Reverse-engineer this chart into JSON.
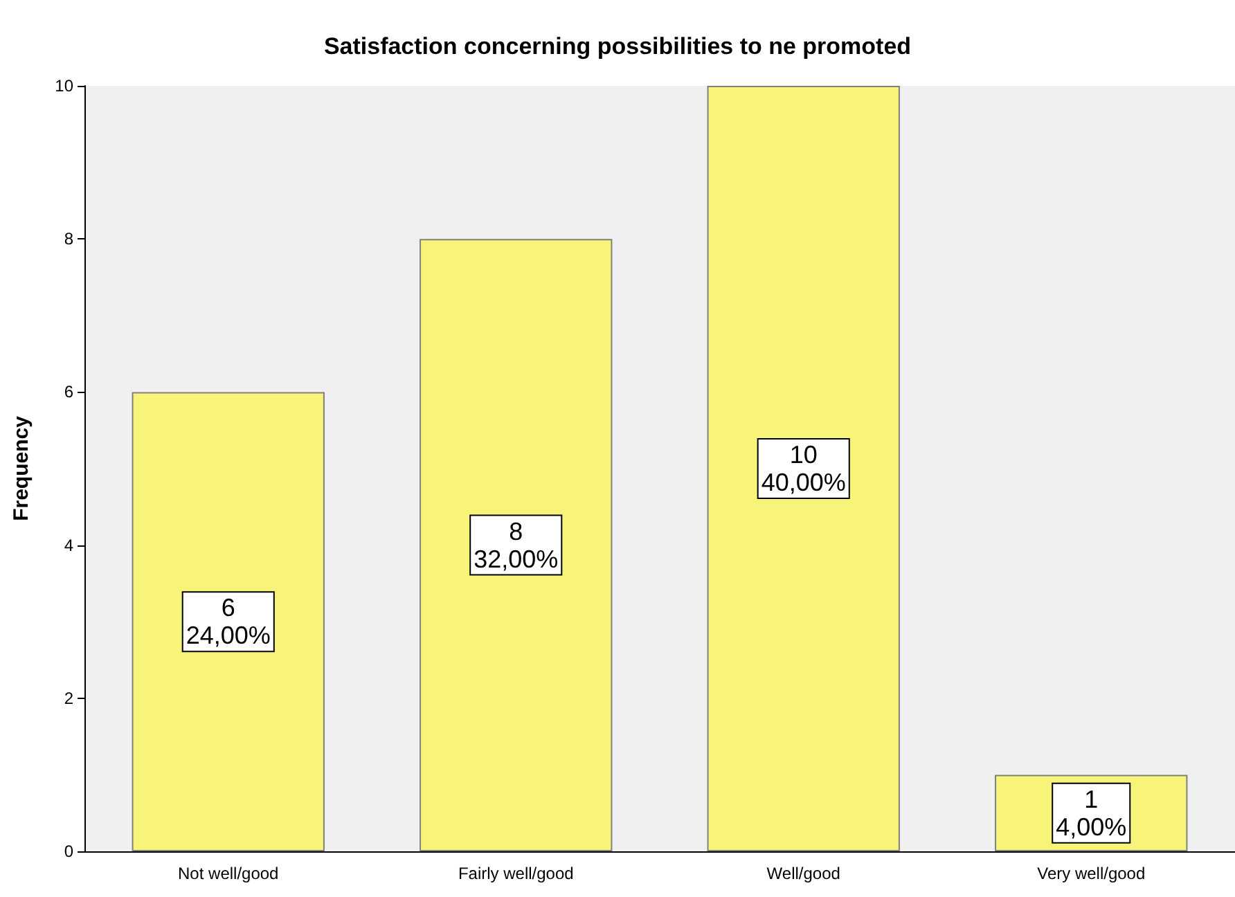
{
  "chart_data": {
    "type": "bar",
    "title": "Satisfaction concerning possibilities to ne promoted",
    "ylabel": "Frequency",
    "categories": [
      "Not well/good",
      "Fairly well/good",
      "Well/good",
      "Very well/good"
    ],
    "values": [
      6,
      8,
      10,
      1
    ],
    "value_labels": [
      "6\n24,00%",
      "8\n32,00%",
      "10\n40,00%",
      "1\n4,00%"
    ],
    "color": "#f8f47a",
    "ylim": [
      0,
      10
    ],
    "yticks": [
      0,
      2,
      4,
      6,
      8,
      10
    ],
    "grid": false
  }
}
